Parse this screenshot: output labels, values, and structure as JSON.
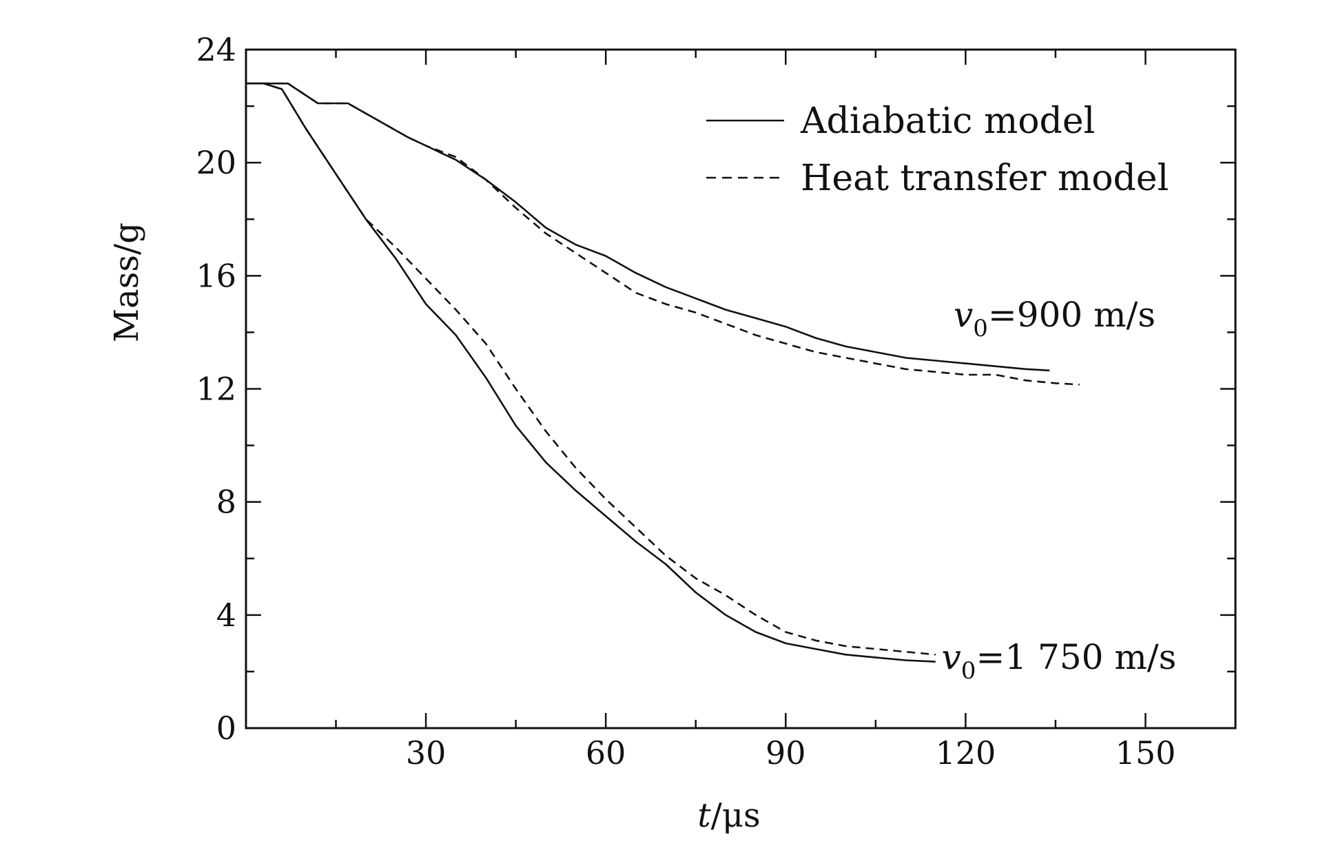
{
  "chart_data": {
    "type": "line",
    "xlabel": {
      "italic": "t",
      "rest": "/μs"
    },
    "ylabel": "Mass/g",
    "xlim": [
      0,
      165
    ],
    "ylim": [
      0,
      24
    ],
    "x_ticks": [
      "30",
      "60",
      "90",
      "120",
      "150"
    ],
    "y_ticks": [
      "0",
      "4",
      "8",
      "12",
      "16",
      "20",
      "24"
    ],
    "grid": false,
    "legend": {
      "placement": "top-right",
      "entries": [
        {
          "label": "Adiabatic model",
          "style": "solid"
        },
        {
          "label": "Heat transfer model",
          "style": "dashed"
        }
      ]
    },
    "annotations": [
      {
        "symbol": "v",
        "subscript": "0",
        "text": "=900 m/s",
        "x": 118,
        "y": 14.2
      },
      {
        "symbol": "v",
        "subscript": "0",
        "text": "=1 750 m/s",
        "x": 116,
        "y": 2.1
      }
    ],
    "series": [
      {
        "group": "v0=900 m/s",
        "model": "Adiabatic model",
        "style": "solid",
        "x": [
          0,
          7,
          12,
          17,
          22,
          27,
          30,
          35,
          40,
          45,
          50,
          55,
          60,
          65,
          70,
          75,
          80,
          85,
          90,
          95,
          100,
          105,
          110,
          115,
          120,
          125,
          130,
          134
        ],
        "y": [
          22.8,
          22.8,
          22.1,
          22.1,
          21.5,
          20.9,
          20.6,
          20.1,
          19.4,
          18.6,
          17.7,
          17.1,
          16.7,
          16.1,
          15.6,
          15.2,
          14.8,
          14.5,
          14.2,
          13.8,
          13.5,
          13.3,
          13.1,
          13.0,
          12.9,
          12.8,
          12.7,
          12.65
        ]
      },
      {
        "group": "v0=900 m/s",
        "model": "Heat transfer model",
        "style": "dashed",
        "x": [
          0,
          7,
          12,
          17,
          22,
          27,
          30,
          35,
          40,
          45,
          50,
          55,
          60,
          65,
          70,
          75,
          80,
          85,
          90,
          95,
          100,
          105,
          110,
          115,
          120,
          125,
          130,
          135,
          139
        ],
        "y": [
          22.8,
          22.8,
          22.1,
          22.1,
          21.5,
          20.9,
          20.6,
          20.2,
          19.4,
          18.4,
          17.5,
          16.8,
          16.1,
          15.4,
          15.0,
          14.7,
          14.3,
          13.9,
          13.6,
          13.3,
          13.1,
          12.9,
          12.7,
          12.6,
          12.5,
          12.5,
          12.3,
          12.2,
          12.15
        ]
      },
      {
        "group": "v0=1 750 m/s",
        "model": "Adiabatic model",
        "style": "solid",
        "x": [
          0,
          3,
          6,
          10,
          15,
          20,
          25,
          30,
          35,
          40,
          45,
          50,
          55,
          60,
          65,
          70,
          75,
          80,
          85,
          90,
          95,
          100,
          105,
          110,
          115
        ],
        "y": [
          22.8,
          22.8,
          22.6,
          21.2,
          19.6,
          18.0,
          16.6,
          15.0,
          13.9,
          12.4,
          10.7,
          9.4,
          8.4,
          7.5,
          6.6,
          5.8,
          4.8,
          4.0,
          3.4,
          3.0,
          2.8,
          2.6,
          2.5,
          2.4,
          2.35
        ]
      },
      {
        "group": "v0=1 750 m/s",
        "model": "Heat transfer model",
        "style": "dashed",
        "x": [
          0,
          3,
          6,
          10,
          15,
          20,
          25,
          30,
          35,
          40,
          45,
          50,
          55,
          60,
          65,
          70,
          75,
          80,
          85,
          90,
          95,
          100,
          105,
          110,
          115
        ],
        "y": [
          22.8,
          22.8,
          22.6,
          21.2,
          19.6,
          18.0,
          17.0,
          15.9,
          14.8,
          13.6,
          12.0,
          10.5,
          9.2,
          8.1,
          7.1,
          6.1,
          5.3,
          4.7,
          4.0,
          3.4,
          3.1,
          2.9,
          2.8,
          2.7,
          2.6
        ]
      }
    ]
  }
}
